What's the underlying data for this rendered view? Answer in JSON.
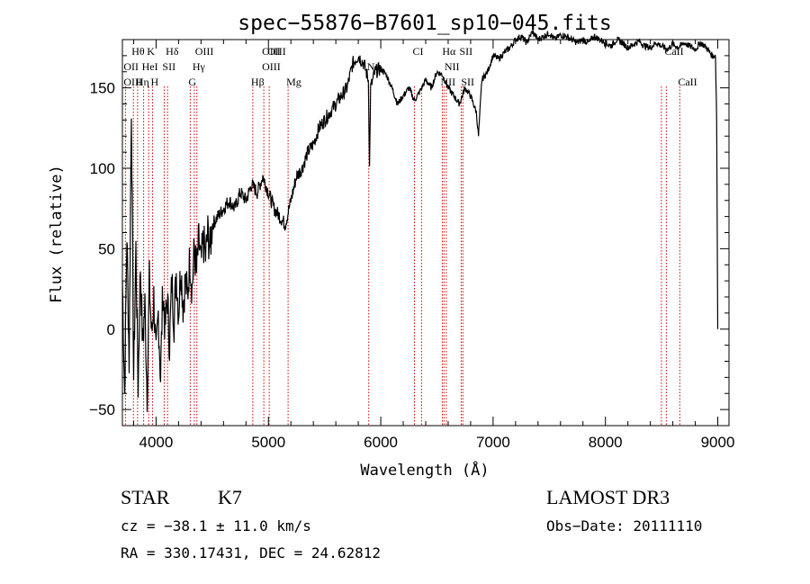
{
  "chart_data": {
    "type": "line",
    "title": "spec−55876−B7601_sp10−045.fits",
    "xlabel": "Wavelength (Å)",
    "ylabel": "Flux (relative)",
    "xlim": [
      3700,
      9100
    ],
    "ylim": [
      -60,
      180
    ],
    "xticks": [
      4000,
      5000,
      6000,
      7000,
      8000,
      9000
    ],
    "yticks": [
      -50,
      0,
      50,
      100,
      150
    ],
    "series": [
      {
        "name": "flux",
        "x": [
          3700,
          3720,
          3740,
          3760,
          3780,
          3800,
          3820,
          3840,
          3860,
          3880,
          3900,
          3920,
          3940,
          3960,
          3980,
          4000,
          4020,
          4040,
          4060,
          4080,
          4100,
          4120,
          4140,
          4160,
          4180,
          4200,
          4220,
          4240,
          4260,
          4280,
          4300,
          4320,
          4340,
          4360,
          4380,
          4400,
          4420,
          4440,
          4460,
          4480,
          4500,
          4550,
          4600,
          4650,
          4700,
          4750,
          4800,
          4850,
          4900,
          4950,
          5000,
          5050,
          5100,
          5150,
          5200,
          5250,
          5300,
          5350,
          5400,
          5450,
          5500,
          5550,
          5600,
          5650,
          5700,
          5750,
          5800,
          5850,
          5890,
          5900,
          5910,
          5950,
          6000,
          6050,
          6100,
          6150,
          6200,
          6250,
          6300,
          6350,
          6400,
          6450,
          6500,
          6550,
          6600,
          6650,
          6700,
          6750,
          6800,
          6850,
          6870,
          6900,
          6950,
          7000,
          7050,
          7100,
          7150,
          7200,
          7250,
          7300,
          7350,
          7400,
          7450,
          7500,
          7550,
          7600,
          7650,
          7700,
          7750,
          7800,
          7850,
          7900,
          7950,
          8000,
          8050,
          8100,
          8150,
          8200,
          8250,
          8300,
          8350,
          8400,
          8450,
          8500,
          8550,
          8600,
          8650,
          8700,
          8750,
          8800,
          8850,
          8900,
          8950,
          8980,
          8990,
          9000
        ],
        "y": [
          30,
          -40,
          60,
          -20,
          140,
          -30,
          50,
          -35,
          40,
          -10,
          15,
          -40,
          30,
          -5,
          20,
          -20,
          10,
          -30,
          25,
          0,
          20,
          -10,
          30,
          5,
          35,
          10,
          40,
          15,
          30,
          20,
          45,
          25,
          50,
          35,
          55,
          40,
          55,
          45,
          60,
          50,
          65,
          70,
          75,
          80,
          75,
          85,
          80,
          90,
          85,
          95,
          85,
          75,
          70,
          65,
          80,
          95,
          100,
          110,
          115,
          125,
          130,
          135,
          140,
          145,
          150,
          165,
          170,
          165,
          155,
          100,
          150,
          160,
          162,
          158,
          150,
          140,
          145,
          150,
          142,
          148,
          155,
          150,
          160,
          158,
          150,
          145,
          140,
          150,
          145,
          135,
          120,
          155,
          160,
          170,
          168,
          172,
          175,
          180,
          182,
          178,
          185,
          180,
          182,
          184,
          180,
          183,
          182,
          180,
          178,
          180,
          178,
          182,
          180,
          178,
          176,
          180,
          178,
          175,
          177,
          179,
          176,
          175,
          178,
          176,
          174,
          177,
          175,
          178,
          176,
          174,
          178,
          175,
          170,
          170,
          130,
          0
        ]
      }
    ],
    "line_markers": [
      {
        "label": "Hθ",
        "wavelength": 3798
      },
      {
        "label": "K",
        "wavelength": 3934
      },
      {
        "label": "Hδ",
        "wavelength": 4102
      },
      {
        "label": "OIII",
        "wavelength": 4363
      },
      {
        "label": "OIII",
        "wavelength": 4959
      },
      {
        "label": "OIII",
        "wavelength": 5007
      },
      {
        "label": "CI",
        "wavelength": 6300
      },
      {
        "label": "Hα",
        "wavelength": 6563
      },
      {
        "label": "SII",
        "wavelength": 6716
      },
      {
        "label": "CaII",
        "wavelength": 8542
      },
      {
        "label": "OII",
        "wavelength": 3727
      },
      {
        "label": "HeI",
        "wavelength": 3889
      },
      {
        "label": "SII",
        "wavelength": 4072
      },
      {
        "label": "Hγ",
        "wavelength": 4340
      },
      {
        "label": "OIII",
        "wavelength": 4959
      },
      {
        "label": "Na",
        "wavelength": 5893
      },
      {
        "label": "NII",
        "wavelength": 6583
      },
      {
        "label": "OIII",
        "wavelength": 3727
      },
      {
        "label": "Hη",
        "wavelength": 3835
      },
      {
        "label": "H",
        "wavelength": 3968
      },
      {
        "label": "G",
        "wavelength": 4304
      },
      {
        "label": "Hβ",
        "wavelength": 4861
      },
      {
        "label": "Mg",
        "wavelength": 5175
      },
      {
        "label": "NII",
        "wavelength": 6548
      },
      {
        "label": "SII",
        "wavelength": 6731
      },
      {
        "label": "CaII",
        "wavelength": 8662
      }
    ],
    "marker_lines": [
      3727,
      3798,
      3835,
      3889,
      3934,
      3968,
      4072,
      4102,
      4304,
      4340,
      4363,
      4861,
      4959,
      5007,
      5175,
      5893,
      6300,
      6363,
      6548,
      6563,
      6583,
      6716,
      6731,
      8498,
      8542,
      8662
    ]
  },
  "info": {
    "object_class": "STAR",
    "subclass": "K7",
    "survey": "LAMOST DR3",
    "cz": "cz = −38.1 ± 11.0 km/s",
    "obs_date": "Obs−Date: 20111110",
    "coords": "RA = 330.17431, DEC =  24.62812"
  }
}
